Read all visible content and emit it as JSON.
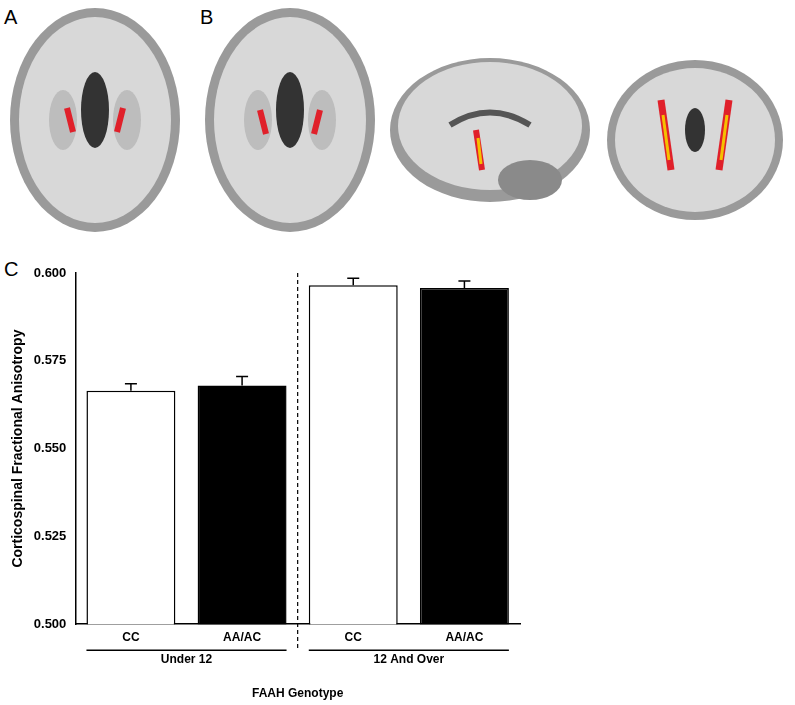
{
  "panels": [
    "A",
    "B",
    "C"
  ],
  "chart_data": {
    "type": "bar",
    "categories": [
      "CC",
      "AA/AC",
      "CC",
      "AA/AC"
    ],
    "groups": [
      "Under 12",
      "12 And Over"
    ],
    "values": [
      0.5665,
      0.568,
      0.5965,
      0.5957
    ],
    "errors": [
      0.002,
      0.0025,
      0.002,
      0.002
    ],
    "colors": [
      "#ffffff",
      "#000000",
      "#ffffff",
      "#000000"
    ],
    "x_label": "FAAH Genotype",
    "y_label": "Corticospinal Fractional Anisotropy",
    "ylim": [
      0.5,
      0.6
    ],
    "yticks": [
      {
        "value": 0.5,
        "label": "0.500"
      },
      {
        "value": 0.525,
        "label": "0.525"
      },
      {
        "value": 0.55,
        "label": "0.550"
      },
      {
        "value": 0.575,
        "label": "0.575"
      },
      {
        "value": 0.6,
        "label": "0.600"
      }
    ],
    "grid": false
  }
}
